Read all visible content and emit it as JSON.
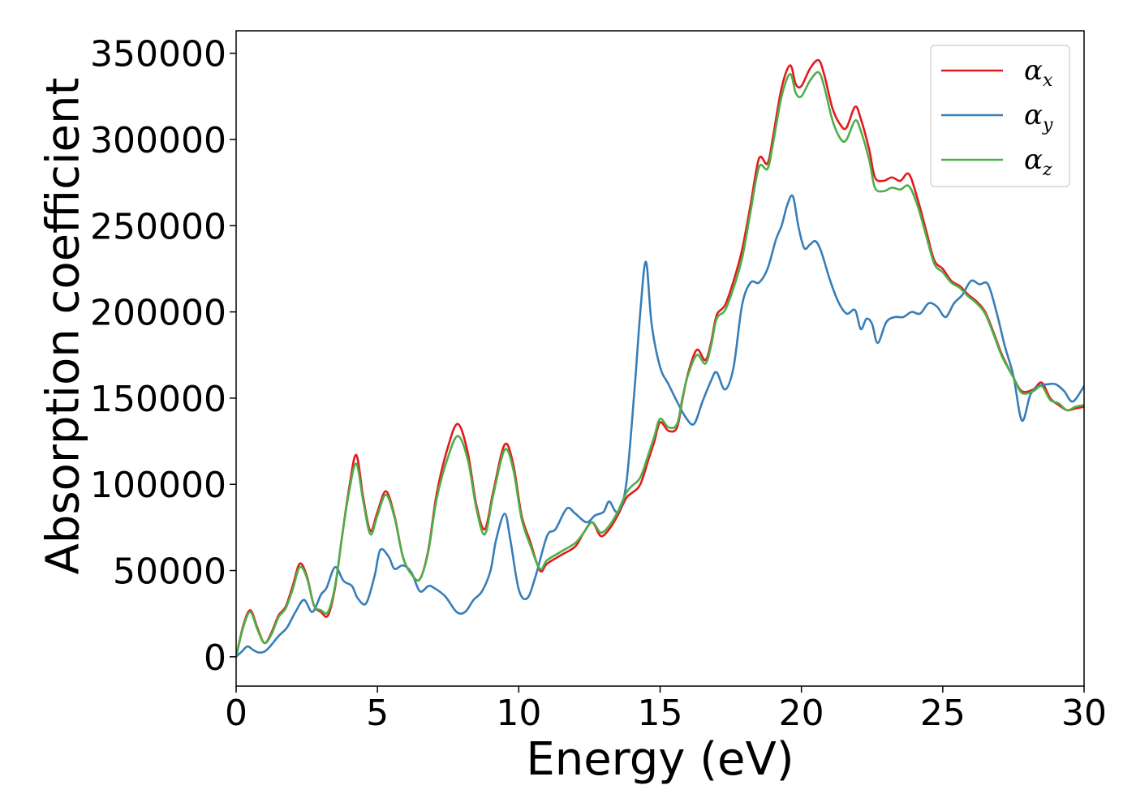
{
  "chart_data": {
    "type": "line",
    "xlabel": "Energy (eV)",
    "ylabel": "Absorption coefficient",
    "xlim": [
      0,
      30
    ],
    "ylim": [
      -17000,
      363000
    ],
    "xticks": [
      0,
      5,
      10,
      15,
      20,
      25,
      30
    ],
    "yticks": [
      0,
      50000,
      100000,
      150000,
      200000,
      250000,
      300000,
      350000
    ],
    "grid": false,
    "legend_position": "top-right",
    "series": [
      {
        "name": "α",
        "subscript": "x",
        "color": "#e41a1c",
        "x": [
          0,
          0.25,
          0.5,
          0.75,
          1.0,
          1.25,
          1.5,
          1.75,
          2.0,
          2.25,
          2.5,
          2.75,
          3.0,
          3.25,
          3.5,
          3.75,
          4.0,
          4.25,
          4.5,
          4.75,
          5.0,
          5.3,
          5.6,
          5.9,
          6.2,
          6.5,
          6.8,
          7.1,
          7.5,
          7.85,
          8.2,
          8.5,
          8.8,
          9.1,
          9.5,
          9.8,
          10.1,
          10.4,
          10.75,
          11.0,
          11.5,
          12.0,
          12.3,
          12.6,
          12.9,
          13.2,
          13.5,
          13.8,
          14.0,
          14.3,
          14.6,
          14.8,
          15.0,
          15.3,
          15.6,
          15.8,
          16.0,
          16.3,
          16.6,
          16.8,
          17.0,
          17.3,
          17.6,
          17.9,
          18.2,
          18.5,
          18.8,
          19.0,
          19.3,
          19.6,
          19.8,
          20.0,
          20.3,
          20.6,
          20.8,
          21.1,
          21.4,
          21.6,
          21.9,
          22.1,
          22.4,
          22.6,
          22.9,
          23.2,
          23.5,
          23.8,
          24.1,
          24.4,
          24.7,
          25.0,
          25.3,
          25.6,
          25.9,
          26.2,
          26.5,
          26.8,
          27.1,
          27.5,
          27.8,
          28.2,
          28.5,
          28.8,
          29.1,
          29.4,
          29.7,
          30.0
        ],
        "y": [
          0,
          18000,
          27000,
          17000,
          8000,
          14000,
          24000,
          29000,
          41000,
          54000,
          47000,
          30000,
          26000,
          24000,
          40000,
          70000,
          98000,
          117000,
          92000,
          73000,
          84000,
          96000,
          82000,
          58000,
          48000,
          45000,
          62000,
          95000,
          122000,
          135000,
          118000,
          88000,
          74000,
          96000,
          123000,
          112000,
          82000,
          67000,
          50000,
          54000,
          59000,
          64000,
          72000,
          78000,
          70000,
          74000,
          82000,
          92000,
          95000,
          100000,
          115000,
          125000,
          136000,
          131000,
          133000,
          150000,
          165000,
          178000,
          172000,
          182000,
          198000,
          204000,
          218000,
          236000,
          262000,
          289000,
          286000,
          302000,
          330000,
          343000,
          332000,
          331000,
          341000,
          346000,
          338000,
          318000,
          308000,
          307000,
          319000,
          312000,
          294000,
          278000,
          276000,
          278000,
          276000,
          280000,
          266000,
          248000,
          230000,
          225000,
          218000,
          215000,
          210000,
          206000,
          200000,
          188000,
          175000,
          162000,
          154000,
          155000,
          159000,
          150000,
          146000,
          143000,
          144000,
          145000
        ]
      },
      {
        "name": "α",
        "subscript": "y",
        "color": "#377eb8",
        "x": [
          0,
          0.2,
          0.4,
          0.6,
          0.8,
          1.0,
          1.2,
          1.5,
          1.8,
          2.1,
          2.4,
          2.7,
          3.0,
          3.2,
          3.5,
          3.8,
          4.1,
          4.3,
          4.6,
          4.9,
          5.1,
          5.4,
          5.6,
          5.9,
          6.2,
          6.5,
          6.8,
          7.0,
          7.4,
          7.8,
          8.1,
          8.4,
          8.7,
          9.0,
          9.2,
          9.5,
          9.7,
          10.0,
          10.3,
          10.6,
          11.0,
          11.3,
          11.7,
          12.0,
          12.4,
          12.7,
          13.0,
          13.2,
          13.5,
          13.8,
          14.1,
          14.3,
          14.5,
          14.7,
          15.0,
          15.3,
          15.6,
          15.9,
          16.2,
          16.5,
          16.8,
          17.0,
          17.3,
          17.6,
          17.9,
          18.2,
          18.5,
          18.8,
          19.1,
          19.3,
          19.5,
          19.7,
          19.9,
          20.1,
          20.3,
          20.5,
          20.7,
          21.0,
          21.3,
          21.6,
          21.9,
          22.1,
          22.3,
          22.5,
          22.7,
          23.0,
          23.3,
          23.6,
          23.9,
          24.2,
          24.5,
          24.8,
          25.1,
          25.4,
          25.7,
          26.0,
          26.3,
          26.6,
          26.9,
          27.2,
          27.5,
          27.8,
          28.1,
          28.4,
          28.7,
          29.0,
          29.3,
          29.6,
          30.0
        ],
        "y": [
          0,
          3000,
          6000,
          4000,
          2500,
          3000,
          6000,
          12000,
          17000,
          26000,
          33000,
          26000,
          36000,
          40000,
          52000,
          44000,
          41000,
          34000,
          31000,
          47000,
          62000,
          58000,
          51000,
          53000,
          49000,
          38000,
          41000,
          40000,
          35000,
          26000,
          26000,
          33000,
          38000,
          50000,
          68000,
          83000,
          68000,
          39000,
          34000,
          47000,
          70000,
          74000,
          86000,
          83000,
          78000,
          82000,
          84000,
          90000,
          84000,
          100000,
          156000,
          200000,
          229000,
          193000,
          168000,
          158000,
          148000,
          139000,
          135000,
          148000,
          160000,
          165000,
          155000,
          168000,
          204000,
          217000,
          217000,
          225000,
          242000,
          250000,
          262000,
          267000,
          249000,
          237000,
          239000,
          241000,
          235000,
          219000,
          206000,
          199000,
          201000,
          190000,
          196000,
          193000,
          182000,
          194000,
          197000,
          197000,
          200000,
          199000,
          205000,
          203000,
          197000,
          205000,
          210000,
          218000,
          216000,
          216000,
          200000,
          180000,
          163000,
          137000,
          152000,
          157000,
          158000,
          158000,
          154000,
          148000,
          157000
        ]
      },
      {
        "name": "α",
        "subscript": "z",
        "color": "#4daf4a",
        "x": [
          0,
          0.25,
          0.5,
          0.75,
          1.0,
          1.25,
          1.5,
          1.75,
          2.0,
          2.25,
          2.5,
          2.75,
          3.0,
          3.25,
          3.5,
          3.75,
          4.0,
          4.25,
          4.5,
          4.75,
          5.0,
          5.3,
          5.6,
          5.9,
          6.2,
          6.5,
          6.8,
          7.1,
          7.5,
          7.85,
          8.2,
          8.5,
          8.8,
          9.1,
          9.5,
          9.8,
          10.1,
          10.4,
          10.75,
          11.0,
          11.5,
          12.0,
          12.3,
          12.6,
          12.9,
          13.2,
          13.5,
          13.8,
          14.0,
          14.3,
          14.6,
          14.8,
          15.0,
          15.3,
          15.6,
          15.8,
          16.0,
          16.3,
          16.6,
          16.8,
          17.0,
          17.3,
          17.6,
          17.9,
          18.2,
          18.5,
          18.8,
          19.0,
          19.3,
          19.6,
          19.8,
          20.0,
          20.3,
          20.6,
          20.8,
          21.1,
          21.4,
          21.6,
          21.9,
          22.1,
          22.4,
          22.6,
          22.9,
          23.2,
          23.5,
          23.8,
          24.1,
          24.4,
          24.7,
          25.0,
          25.3,
          25.6,
          25.9,
          26.2,
          26.5,
          26.8,
          27.1,
          27.5,
          27.8,
          28.2,
          28.5,
          28.8,
          29.1,
          29.4,
          29.7,
          30.0
        ],
        "y": [
          0,
          17000,
          26000,
          16000,
          8000,
          13000,
          23000,
          28000,
          39000,
          52000,
          46000,
          30000,
          27000,
          26000,
          41000,
          70000,
          96000,
          112000,
          90000,
          71000,
          82000,
          94000,
          81000,
          58000,
          48000,
          45000,
          61000,
          92000,
          116000,
          128000,
          114000,
          86000,
          71000,
          94000,
          120000,
          109000,
          80000,
          65000,
          51000,
          56000,
          61000,
          66000,
          72000,
          78000,
          72000,
          76000,
          84000,
          95000,
          99000,
          104000,
          118000,
          128000,
          138000,
          133000,
          135000,
          151000,
          164000,
          175000,
          170000,
          180000,
          196000,
          201000,
          214000,
          231000,
          258000,
          284000,
          283000,
          298000,
          325000,
          338000,
          327000,
          325000,
          334000,
          339000,
          331000,
          311000,
          300000,
          300000,
          311000,
          305000,
          288000,
          272000,
          270000,
          272000,
          271000,
          273000,
          262000,
          245000,
          228000,
          223000,
          217000,
          214000,
          209000,
          205000,
          199000,
          187000,
          174000,
          162000,
          153000,
          154000,
          157000,
          149000,
          147000,
          143000,
          145000,
          146000
        ]
      }
    ]
  }
}
